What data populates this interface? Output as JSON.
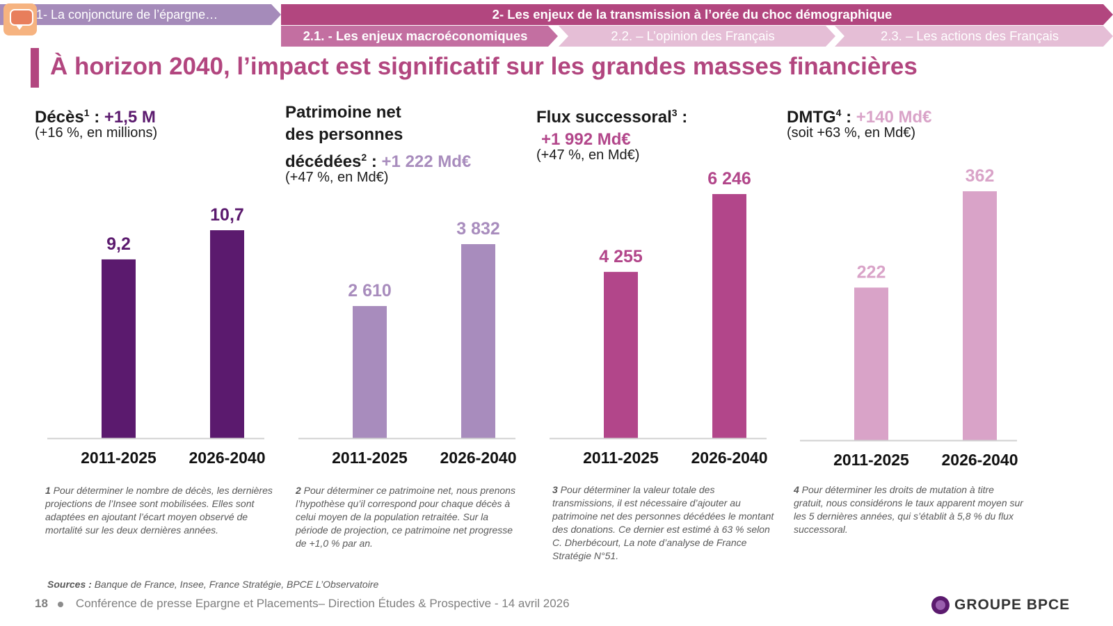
{
  "nav": {
    "section1": "1- La conjoncture de l’épargne…",
    "section2": "2- Les enjeux de la transmission à l’orée du choc démographique",
    "sub1": "2.1. - Les enjeux macroéconomiques",
    "sub2": "2.2. – L’opinion des Français",
    "sub3": "2.3. – Les actions des Français"
  },
  "title": "À horizon 2040, l’impact est significatif sur les grandes masses financières",
  "panels": [
    {
      "head_lines": [
        "Décès",
        "1",
        " : ",
        "+1,5 M"
      ],
      "subtitle": "(+16 %, en millions)",
      "note_num": "1",
      "note": " Pour déterminer le nombre de décès, les dernières projections de l’Insee sont mobilisées. Elles sont adaptées en ajoutant l’écart moyen observé de mortalité sur les deux dernières années."
    },
    {
      "head_lines": [
        "Patrimoine net",
        "des personnes",
        "décédées",
        "2",
        " : ",
        "+1 222 Md€"
      ],
      "subtitle": "(+47 %, en Md€)",
      "note_num": "2",
      "note": " Pour déterminer ce patrimoine net, nous prenons l’hypothèse qu’il correspond pour chaque décès à celui moyen de la population retraitée. Sur la période de projection, ce patrimoine net progresse de +1,0 % par an."
    },
    {
      "head_lines": [
        "Flux successoral",
        "3",
        " :",
        "+1 992 Md€"
      ],
      "subtitle": "(+47 %, en Md€)",
      "note_num": "3",
      "note": " Pour déterminer la valeur totale des transmissions, il est nécessaire d’ajouter au patrimoine net des personnes décédées le montant des donations. Ce dernier est estimé à 63 % selon C. Dherbécourt, La note d’analyse de France Stratégie N°51."
    },
    {
      "head_lines": [
        "DMTG",
        "4",
        " : ",
        "+140 Md€"
      ],
      "subtitle": "(soit +63 %, en Md€)",
      "note_num": "4",
      "note": " Pour déterminer les droits de mutation à titre gratuit, nous considérons le taux apparent moyen sur les 5 dernières années, qui s’établit à 5,8 % du flux successoral."
    }
  ],
  "chart_data": [
    {
      "type": "bar",
      "categories": [
        "2011-2025",
        "2026-2040"
      ],
      "values": [
        9.2,
        10.7
      ],
      "labels": [
        "9,2",
        "10,7"
      ],
      "color": "#5b1a6e",
      "grid": false
    },
    {
      "type": "bar",
      "categories": [
        "2011-2025",
        "2026-2040"
      ],
      "values": [
        2610,
        3832
      ],
      "labels": [
        "2 610",
        "3 832"
      ],
      "color": "#a88cbd",
      "grid": false
    },
    {
      "type": "bar",
      "categories": [
        "2011-2025",
        "2026-2040"
      ],
      "values": [
        4255,
        6246
      ],
      "labels": [
        "4 255",
        "6 246"
      ],
      "color": "#b2468a",
      "grid": false
    },
    {
      "type": "bar",
      "categories": [
        "2011-2025",
        "2026-2040"
      ],
      "values": [
        222,
        362
      ],
      "labels": [
        "222",
        "362"
      ],
      "color": "#d9a3c8",
      "grid": false
    }
  ],
  "colors": {
    "accent": "#b2467f",
    "nav1": "#a58bba",
    "sub_active": "#c36fa1",
    "sub_inactive": "#e5bed6"
  },
  "sources_label": "Sources :",
  "sources": " Banque de France, Insee, France Stratégie, BPCE L’Observatoire",
  "footer": {
    "page": "18",
    "text": "Conférence de presse Epargne et Placements– Direction Études & Prospective - 14 avril 2026"
  },
  "logo_text": "GROUPE BPCE"
}
